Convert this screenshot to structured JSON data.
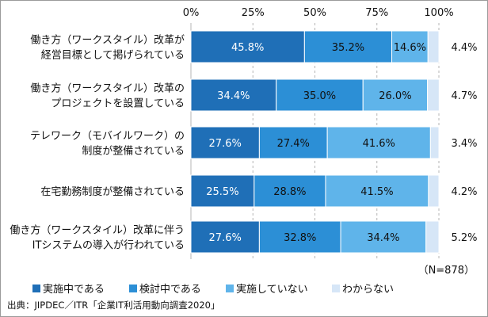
{
  "chart_data": {
    "type": "bar",
    "stacked": true,
    "orientation": "horizontal",
    "x_ticks": [
      "0%",
      "25%",
      "50%",
      "75%",
      "100%"
    ],
    "xlim": [
      0,
      100
    ],
    "grid": true,
    "categories": [
      [
        "働き方（ワークスタイル）改革が",
        "経営目標として掲げられている"
      ],
      [
        "働き方（ワークスタイル）改革の",
        "プロジェクトを設置している"
      ],
      [
        "テレワーク（モバイルワーク）の",
        "制度が整備されている"
      ],
      [
        "在宅勤務制度が整備されている"
      ],
      [
        "働き方（ワークスタイル）改革に伴う",
        "ITシステムの導入が行われている"
      ]
    ],
    "series": [
      {
        "name": "実施中である",
        "color": "#1f6fb7",
        "label_color": "#ffffff",
        "values": [
          45.8,
          34.4,
          27.6,
          25.5,
          27.6
        ],
        "labels": [
          "45.8%",
          "34.4%",
          "27.6%",
          "25.5%",
          "27.6%"
        ]
      },
      {
        "name": "検討中である",
        "color": "#2c8fd6",
        "label_color": "#111111",
        "values": [
          35.2,
          35.0,
          27.4,
          28.8,
          32.8
        ],
        "labels": [
          "35.2%",
          "35.0%",
          "27.4%",
          "28.8%",
          "32.8%"
        ]
      },
      {
        "name": "実施していない",
        "color": "#5fb4ea",
        "label_color": "#111111",
        "values": [
          14.6,
          26.0,
          41.6,
          41.5,
          34.4
        ],
        "labels": [
          "14.6%",
          "26.0%",
          "41.6%",
          "41.5%",
          "34.4%"
        ]
      },
      {
        "name": "わからない",
        "color": "#d6e6f7",
        "label_color": "#111111",
        "values": [
          4.4,
          4.7,
          3.4,
          4.2,
          5.2
        ],
        "labels": [
          "4.4%",
          "4.7%",
          "3.4%",
          "4.2%",
          "5.2%"
        ]
      }
    ],
    "legend_position": "bottom",
    "annotation": "（N=878）",
    "source": "出典：JIPDEC／ITR「企業IT利活用動向調査2020」"
  }
}
